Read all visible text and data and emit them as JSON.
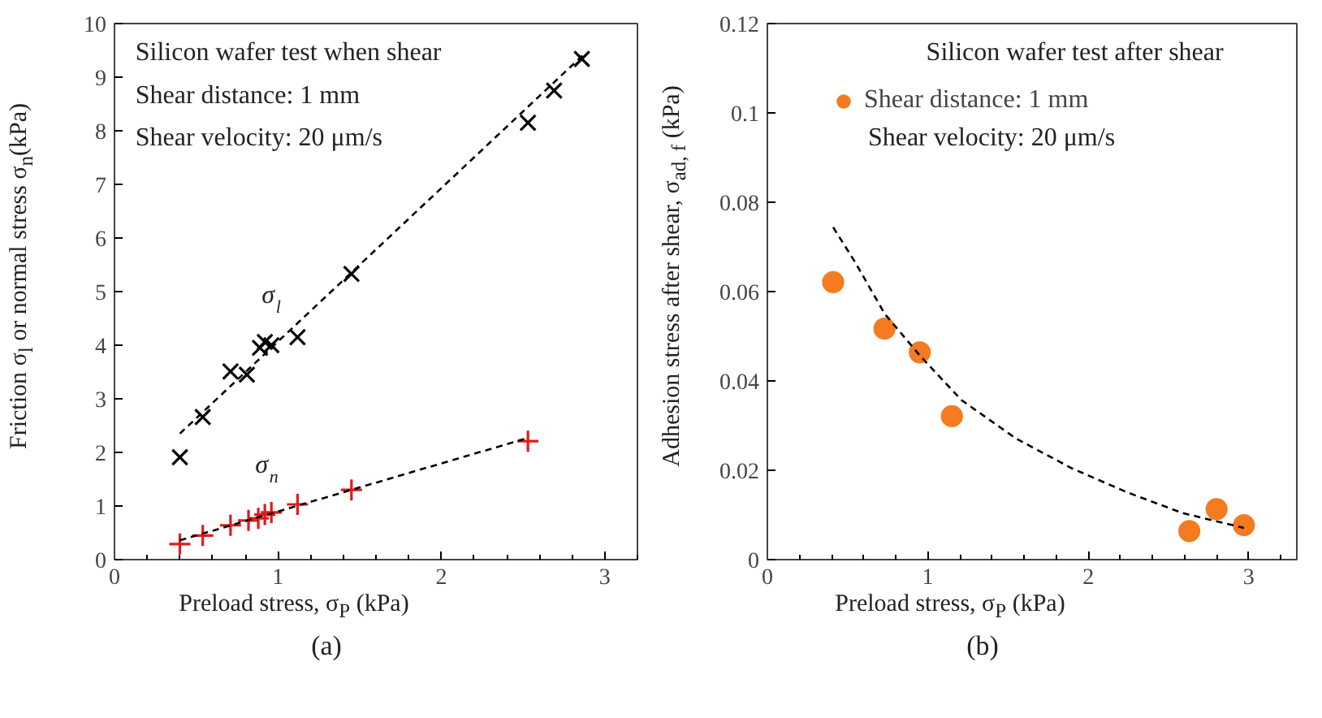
{
  "chart_data": [
    {
      "type": "scatter",
      "title": "(a)",
      "xlabel": "Preload stress, σ$_{P}$ (kPa)",
      "ylabel": "Friction σ$_{l}$ or normal stress σ$_{n}$(kPa)",
      "xlim": [
        0,
        3.2
      ],
      "xticks": [
        0,
        1,
        2,
        3
      ],
      "ylim": [
        0,
        10
      ],
      "yticks": [
        0,
        1,
        2,
        3,
        4,
        5,
        6,
        7,
        8,
        9,
        10
      ],
      "legend": false,
      "annotations": [
        "Silicon wafer test when shear",
        "Shear distance: 1 mm",
        "Shear velocity: 20 μm/s"
      ],
      "series": [
        {
          "name": "σ$_{l}$",
          "marker": "x",
          "color": "#000000",
          "x": [
            0.4,
            0.54,
            0.71,
            0.81,
            0.89,
            0.92,
            0.96,
            1.12,
            1.45,
            2.53,
            2.69,
            2.86
          ],
          "values": [
            1.91,
            2.66,
            3.51,
            3.45,
            3.95,
            4.06,
            4.0,
            4.15,
            5.33,
            8.15,
            8.75,
            9.34
          ]
        },
        {
          "name": "σ$_{n}$",
          "marker": "cross",
          "color": "#e31a1c",
          "x": [
            0.4,
            0.54,
            0.71,
            0.82,
            0.88,
            0.92,
            0.96,
            1.12,
            1.45,
            2.53
          ],
          "values": [
            0.29,
            0.45,
            0.64,
            0.73,
            0.77,
            0.84,
            0.88,
            1.03,
            1.3,
            2.21
          ]
        },
        {
          "type": "line",
          "line_style": "dashed",
          "color": "#000000",
          "x": [
            0.4,
            2.87
          ],
          "values": [
            2.35,
            9.42
          ]
        },
        {
          "type": "line",
          "line_style": "dashed",
          "color": "#000000",
          "x": [
            0.4,
            2.53
          ],
          "values": [
            0.36,
            2.27
          ]
        }
      ]
    },
    {
      "type": "scatter",
      "title": "(b)",
      "xlabel": "Preload stress, σ$_{P}$ (kPa)",
      "ylabel": "Adhesion stress after shear, σ$_{ad, f}$ (kPa)",
      "xlim": [
        0,
        3.3
      ],
      "xticks": [
        0,
        1,
        2,
        3
      ],
      "ylim": [
        0,
        0.12
      ],
      "yticks": [
        0,
        0.02,
        0.04,
        0.06,
        0.08,
        0.1,
        0.12
      ],
      "legend": "top left",
      "annotations": [
        "Silicon wafer test after shear",
        "Shear velocity: 20 μm/s"
      ],
      "series": [
        {
          "marker": "circle",
          "name": "Shear distance: 1 mm",
          "color": "#f47b20",
          "x": [
            0.41,
            0.73,
            0.95,
            1.15,
            2.63,
            2.8,
            2.97
          ],
          "values": [
            0.0621,
            0.0517,
            0.0464,
            0.0321,
            0.0064,
            0.0113,
            0.0077
          ]
        },
        {
          "type": "line",
          "line_style": "dashed",
          "color": "#000000",
          "x": [
            0.41,
            0.55,
            0.73,
            0.95,
            1.21,
            1.55,
            1.9,
            2.24,
            2.59,
            2.97
          ],
          "values": [
            0.0744,
            0.0664,
            0.0551,
            0.0457,
            0.0357,
            0.0271,
            0.0204,
            0.0151,
            0.0104,
            0.0071
          ]
        }
      ]
    }
  ]
}
